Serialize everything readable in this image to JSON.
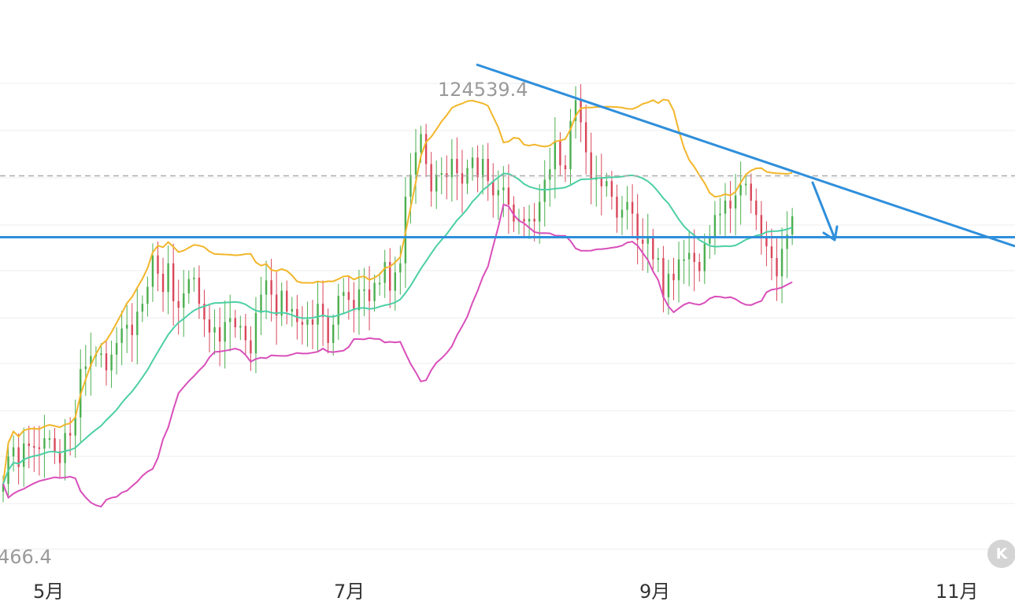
{
  "chart_data": {
    "type": "candlestick",
    "title": "",
    "x_ticks": [
      "5月",
      "7月",
      "9月",
      "11月"
    ],
    "high_label": "124539.4",
    "low_label": "466.4",
    "current_level": 117700,
    "support_level": 113000,
    "colors": {
      "up": "#4caf50",
      "down": "#d9475b",
      "upper_band": "#f2b62b",
      "middle_band": "#4dcfa5",
      "lower_band": "#d94fba",
      "trendline": "#2f8fdb",
      "current_line": "#aaaaaa"
    },
    "candles_close": [
      94100,
      96200,
      96900,
      95400,
      97200,
      97000,
      96900,
      96800,
      97600,
      97600,
      96600,
      95700,
      98000,
      97800,
      99200,
      102900,
      103100,
      103900,
      104000,
      104100,
      102800,
      104000,
      104900,
      106000,
      106300,
      105500,
      107300,
      107900,
      109200,
      111600,
      110200,
      108800,
      111000,
      108100,
      107600,
      108700,
      109800,
      109900,
      107900,
      106700,
      105700,
      106100,
      105000,
      106500,
      106800,
      106100,
      106200,
      105100,
      104100,
      107200,
      108600,
      109700,
      108600,
      107000,
      108900,
      107300,
      107500,
      106500,
      106300,
      106700,
      106300,
      107900,
      106900,
      104900,
      106300,
      108500,
      108800,
      108200,
      107400,
      109000,
      109000,
      108100,
      109500,
      109500,
      111100,
      108900,
      110300,
      111000,
      116100,
      117800,
      119500,
      120900,
      118600,
      116500,
      117800,
      117900,
      117600,
      119000,
      117900,
      117100,
      118300,
      119100,
      117600,
      119000,
      117300,
      116200,
      116600,
      116800,
      115500,
      114200,
      114400,
      114200,
      114400,
      114200,
      115700,
      117400,
      118200,
      120400,
      118500,
      118200,
      121900,
      123500,
      121800,
      119500,
      117400,
      117600,
      116900,
      117300,
      116100,
      114500,
      115100,
      115700,
      114800,
      112800,
      112500,
      113000,
      111300,
      111400,
      108400,
      110200,
      109700,
      111300,
      111300,
      111800,
      111100,
      110400,
      112500,
      113000,
      114700,
      114800,
      115800,
      115200,
      116200,
      117000,
      117100,
      115800,
      114700,
      113000,
      112300,
      111400,
      110000,
      112100,
      113200,
      114600
    ]
  }
}
